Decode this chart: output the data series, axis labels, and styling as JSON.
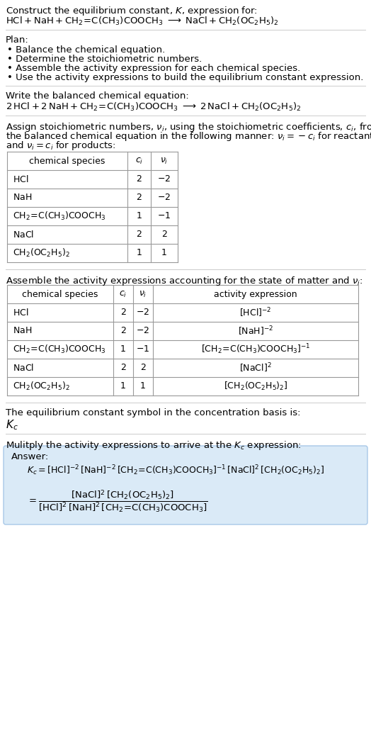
{
  "bg_color": "#ffffff",
  "text_color": "#000000",
  "title_line1": "Construct the equilibrium constant, $K$, expression for:",
  "title_line2": "$\\mathrm{HCl + NaH + CH_2\\!=\\!C(CH_3)COOCH_3 \\;\\longrightarrow\\; NaCl + CH_2(OC_2H_5)_2}$",
  "plan_header": "Plan:",
  "plan_items": [
    "\\bullet\\; Balance the chemical equation.",
    "\\bullet\\; Determine the stoichiometric numbers.",
    "\\bullet\\; Assemble the activity expression for each chemical species.",
    "\\bullet\\; Use the activity expressions to build the equilibrium constant expression."
  ],
  "balanced_header": "Write the balanced chemical equation:",
  "balanced_eq": "$\\mathrm{2\\,HCl + 2\\,NaH + CH_2\\!=\\!C(CH_3)COOCH_3 \\;\\longrightarrow\\; 2\\,NaCl + CH_2(OC_2H_5)_2}$",
  "stoich_lines": [
    "Assign stoichiometric numbers, $\\nu_i$, using the stoichiometric coefficients, $c_i$, from",
    "the balanced chemical equation in the following manner: $\\nu_i = -c_i$ for reactants",
    "and $\\nu_i = c_i$ for products:"
  ],
  "table1_header": [
    "chemical species",
    "$c_i$",
    "$\\nu_i$"
  ],
  "table1_rows": [
    [
      "$\\mathrm{HCl}$",
      "2",
      "$-2$"
    ],
    [
      "$\\mathrm{NaH}$",
      "2",
      "$-2$"
    ],
    [
      "$\\mathrm{CH_2\\!=\\!C(CH_3)COOCH_3}$",
      "1",
      "$-1$"
    ],
    [
      "$\\mathrm{NaCl}$",
      "2",
      "2"
    ],
    [
      "$\\mathrm{CH_2(OC_2H_5)_2}$",
      "1",
      "1"
    ]
  ],
  "activity_header": "Assemble the activity expressions accounting for the state of matter and $\\nu_i$:",
  "table2_header": [
    "chemical species",
    "$c_i$",
    "$\\nu_i$",
    "activity expression"
  ],
  "table2_rows": [
    [
      "$\\mathrm{HCl}$",
      "2",
      "$-2$",
      "$[\\mathrm{HCl}]^{-2}$"
    ],
    [
      "$\\mathrm{NaH}$",
      "2",
      "$-2$",
      "$[\\mathrm{NaH}]^{-2}$"
    ],
    [
      "$\\mathrm{CH_2\\!=\\!C(CH_3)COOCH_3}$",
      "1",
      "$-1$",
      "$[\\mathrm{CH_2\\!=\\!C(CH_3)COOCH_3}]^{-1}$"
    ],
    [
      "$\\mathrm{NaCl}$",
      "2",
      "2",
      "$[\\mathrm{NaCl}]^2$"
    ],
    [
      "$\\mathrm{CH_2(OC_2H_5)_2}$",
      "1",
      "1",
      "$[\\mathrm{CH_2(OC_2H_5)_2}]$"
    ]
  ],
  "kc_header": "The equilibrium constant symbol in the concentration basis is:",
  "kc_symbol": "$K_c$",
  "multiply_header": "Mulitply the activity expressions to arrive at the $K_c$ expression:",
  "answer_label": "Answer:",
  "answer_line1": "$K_c = [\\mathrm{HCl}]^{-2}\\,[\\mathrm{NaH}]^{-2}\\,[\\mathrm{CH_2\\!=\\!C(CH_3)COOCH_3}]^{-1}\\,[\\mathrm{NaCl}]^2\\,[\\mathrm{CH_2(OC_2H_5)_2}]$",
  "answer_eq": "$= \\dfrac{[\\mathrm{NaCl}]^2\\,[\\mathrm{CH_2(OC_2H_5)_2}]}{[\\mathrm{HCl}]^2\\,[\\mathrm{NaH}]^2\\,[\\mathrm{CH_2\\!=\\!C(CH_3)COOCH_3}]}$",
  "answer_box_color": "#daeaf7",
  "answer_box_border": "#a8c8e8",
  "table_border_color": "#999999",
  "separator_color": "#cccccc"
}
